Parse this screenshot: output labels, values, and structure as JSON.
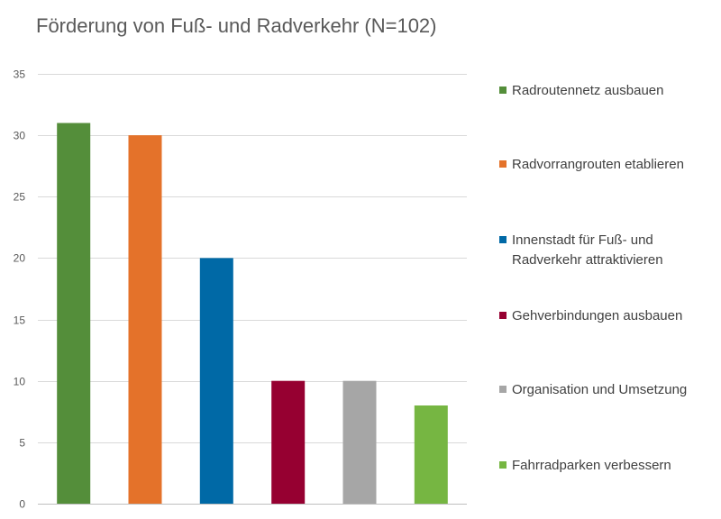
{
  "chart_data": {
    "type": "bar",
    "title": "Förderung von Fuß- und Radverkehr (N=102)",
    "xlabel": "",
    "ylabel": "",
    "ylim": [
      0,
      35
    ],
    "yticks": [
      0,
      5,
      10,
      15,
      20,
      25,
      30,
      35
    ],
    "grid": true,
    "legend_position": "right",
    "categories": [
      "Radroutennetz ausbauen",
      "Radvorrangrouten etablieren",
      "Innenstadt für Fuß- und Radverkehr attraktivieren",
      "Gehverbindungen ausbauen",
      "Organisation und Umsetzung",
      "Fahrradparken verbessern"
    ],
    "values": [
      31,
      30,
      20,
      10,
      10,
      8
    ],
    "colors": [
      "#548e3a",
      "#e4722a",
      "#0069a6",
      "#960031",
      "#a6a6a6",
      "#76b642"
    ],
    "legend_lines": [
      [
        "Radroutennetz ausbauen"
      ],
      [
        "Radvorrangrouten etablieren"
      ],
      [
        "Innenstadt für Fuß- und",
        "Radverkehr attraktivieren"
      ],
      [
        "Gehverbindungen ausbauen"
      ],
      [
        "Organisation und Umsetzung"
      ],
      [
        "Fahrradparken verbessern"
      ]
    ]
  }
}
